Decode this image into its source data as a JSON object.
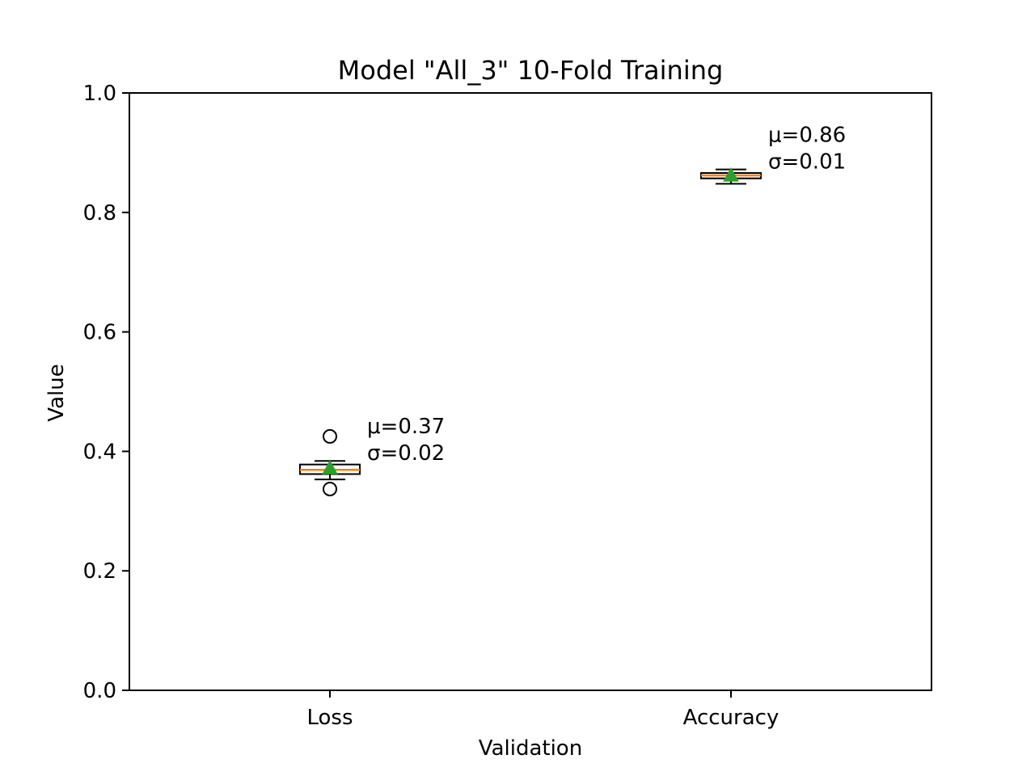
{
  "chart_data": {
    "type": "boxplot",
    "title": "Model \"All_3\" 10-Fold Training",
    "xlabel": "Validation",
    "ylabel": "Value",
    "ylim": [
      0.0,
      1.0
    ],
    "yticks": [
      "0.0",
      "0.2",
      "0.4",
      "0.6",
      "0.8",
      "1.0"
    ],
    "grid": false,
    "boxes": [
      {
        "category": "Loss",
        "whisker_low": 0.353,
        "q1": 0.362,
        "median": 0.369,
        "q3": 0.378,
        "whisker_high": 0.384,
        "mean": 0.372,
        "outliers": [
          0.425,
          0.337
        ],
        "annotation": [
          "μ=0.37",
          "σ=0.02"
        ]
      },
      {
        "category": "Accuracy",
        "whisker_low": 0.848,
        "q1": 0.857,
        "median": 0.862,
        "q3": 0.866,
        "whisker_high": 0.872,
        "mean": 0.862,
        "outliers": [],
        "annotation": [
          "μ=0.86",
          "σ=0.01"
        ]
      }
    ],
    "colors": {
      "box": "#000000",
      "median": "#ff7f0e",
      "mean": "#2ca02c",
      "outlier": "#000000"
    }
  }
}
